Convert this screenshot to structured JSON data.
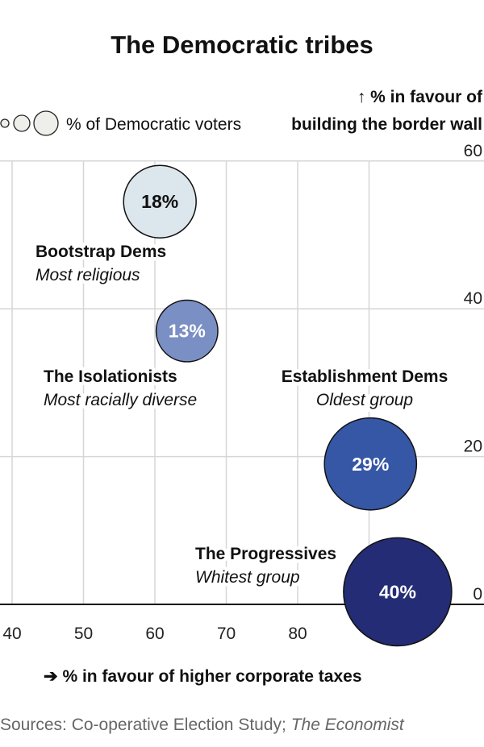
{
  "chart_data": {
    "type": "scatter",
    "title": "The Democratic tribes",
    "xlabel": "% in favour of higher corporate taxes",
    "ylabel": [
      "% in favour of",
      "building the border wall"
    ],
    "size_legend": "% of Democratic voters",
    "xlim": [
      40,
      100
    ],
    "ylim": [
      0,
      60
    ],
    "x_ticks": [
      40,
      50,
      60,
      70,
      80
    ],
    "y_ticks": [
      0,
      20,
      40,
      60
    ],
    "grid": true,
    "points": [
      {
        "name": "Bootstrap Dems",
        "note": "Most religious",
        "x": 60.7,
        "y": 54.5,
        "size": 18,
        "size_label": "18%",
        "color": "#dce6ed",
        "text_color": "#111111"
      },
      {
        "name": "The Isolationists",
        "note": "Most racially diverse",
        "x": 64.5,
        "y": 37,
        "size": 13,
        "size_label": "13%",
        "color": "#7a8fc4",
        "text_color": "#ffffff"
      },
      {
        "name": "Establishment Dems",
        "note": "Oldest group",
        "x": 90.2,
        "y": 19,
        "size": 29,
        "size_label": "29%",
        "color": "#3656a6",
        "text_color": "#ffffff"
      },
      {
        "name": "The Progressives",
        "note": "Whitest group",
        "x": 94,
        "y": 1.7,
        "size": 40,
        "size_label": "40%",
        "color": "#232c74",
        "text_color": "#ffffff"
      }
    ]
  },
  "source": {
    "prefix": "Sources: Co-operative Election Study; ",
    "italic": "The Economist"
  }
}
